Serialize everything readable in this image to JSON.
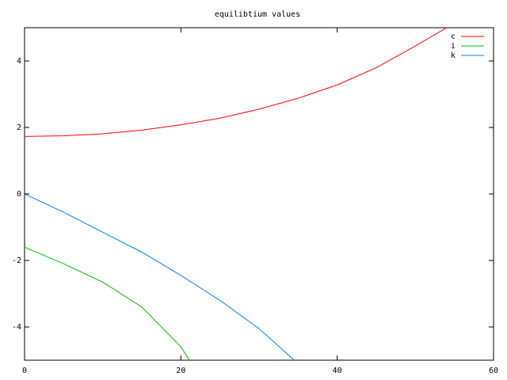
{
  "chart_data": {
    "type": "line",
    "title": "equilibtium values",
    "xlim": [
      0,
      60
    ],
    "xticks": [
      0,
      20,
      40,
      60
    ],
    "ylim": [
      -5,
      5
    ],
    "yticks": [
      -4,
      -2,
      0,
      2,
      4
    ],
    "grid": false,
    "legend": "top-right",
    "series": [
      {
        "name": "c",
        "color": "#ff0000",
        "x": [
          0,
          5,
          10,
          15,
          20,
          25,
          30,
          35,
          40,
          45,
          50,
          54
        ],
        "values": [
          1.73,
          1.75,
          1.81,
          1.92,
          2.08,
          2.28,
          2.55,
          2.88,
          3.28,
          3.8,
          4.45,
          5.0
        ]
      },
      {
        "name": "i",
        "color": "#00c000",
        "x": [
          0,
          5,
          10,
          15,
          20,
          21.1
        ],
        "values": [
          -1.6,
          -2.1,
          -2.65,
          -3.4,
          -4.6,
          -5.0
        ]
      },
      {
        "name": "k",
        "color": "#0080ff",
        "x": [
          0,
          5,
          10,
          15,
          20,
          25,
          30,
          34.5
        ],
        "values": [
          0,
          -0.55,
          -1.15,
          -1.75,
          -2.45,
          -3.2,
          -4.05,
          -5.0
        ]
      }
    ]
  }
}
